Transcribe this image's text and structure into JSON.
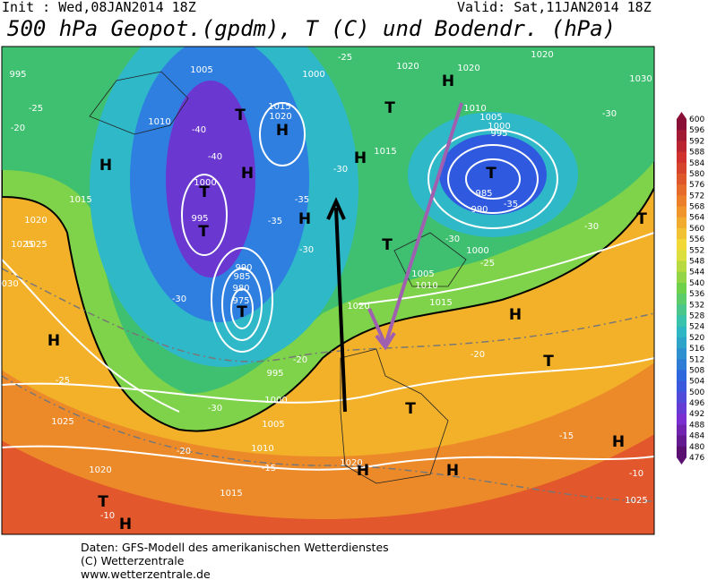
{
  "header": {
    "init": "Init : Wed,08JAN2014 18Z",
    "valid": "Valid: Sat,11JAN2014 18Z",
    "title": "500 hPa Geopot.(gpdm), T (C) und Bodendr. (hPa)"
  },
  "map": {
    "labels": [
      "H",
      "H",
      "H",
      "H",
      "H",
      "H",
      "H",
      "H",
      "H",
      "H",
      "H",
      "H",
      "T",
      "T",
      "T",
      "T",
      "T",
      "T",
      "T",
      "T",
      "T",
      "T",
      "T",
      "995",
      "1005",
      "1010",
      "1000",
      "1020",
      "1020",
      "1020",
      "1030",
      "1010",
      "1005",
      "1000",
      "995",
      "985",
      "990",
      "1000",
      "1015",
      "1010",
      "1005",
      "1020",
      "1015",
      "1020",
      "1025",
      "1030",
      "1025",
      "1020",
      "1015",
      "1010",
      "1005",
      "1000",
      "995",
      "975",
      "980",
      "985",
      "990",
      "1000",
      "995",
      "1015",
      "1020",
      "1015",
      "1025",
      "1020",
      "1025",
      "-25",
      "-30",
      "-35",
      "-30",
      "-35",
      "-30",
      "-25",
      "-20",
      "-15",
      "-10",
      "-15",
      "-10",
      "-20",
      "-25",
      "-30",
      "-30",
      "-35",
      "-20",
      "-30",
      "-20",
      "-25",
      "-40",
      "-40",
      "-30"
    ]
  },
  "colorbar": {
    "ticks": [
      600,
      596,
      592,
      588,
      584,
      580,
      576,
      572,
      568,
      564,
      560,
      556,
      552,
      548,
      544,
      540,
      536,
      532,
      528,
      524,
      520,
      516,
      512,
      508,
      504,
      500,
      496,
      492,
      488,
      484,
      480,
      476
    ]
  },
  "footer": {
    "lines": [
      "Daten: GFS-Modell des amerikanischen Wetterdienstes",
      "(C) Wetterzentrale",
      "www.wetterzentrale.de"
    ]
  }
}
